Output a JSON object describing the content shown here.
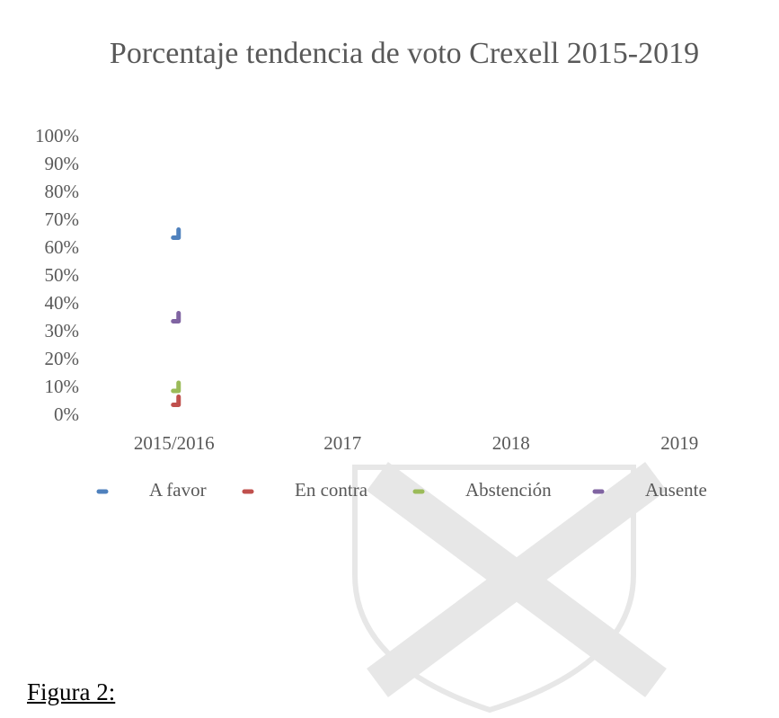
{
  "chart_data": {
    "type": "line",
    "title": "Porcentaje tendencia de voto Crexell 2015-2019",
    "categories": [
      "2015/2016",
      "2017",
      "2018",
      "2019"
    ],
    "series": [
      {
        "name": "A favor",
        "color": "#4f81bd",
        "values": [
          65,
          null,
          null,
          null
        ]
      },
      {
        "name": "En contra",
        "color": "#c0504d",
        "values": [
          5,
          null,
          null,
          null
        ]
      },
      {
        "name": "Abstención",
        "color": "#9bbb59",
        "values": [
          10,
          null,
          null,
          null
        ]
      },
      {
        "name": "Ausente",
        "color": "#8064a2",
        "values": [
          35,
          null,
          null,
          null
        ]
      }
    ],
    "ylim": [
      0,
      100
    ],
    "yticks": [
      {
        "value": 0,
        "label": "0%"
      },
      {
        "value": 10,
        "label": "10%"
      },
      {
        "value": 20,
        "label": "20%"
      },
      {
        "value": 30,
        "label": "30%"
      },
      {
        "value": 40,
        "label": "40%"
      },
      {
        "value": 50,
        "label": "50%"
      },
      {
        "value": 60,
        "label": "60%"
      },
      {
        "value": 70,
        "label": "70%"
      },
      {
        "value": 80,
        "label": "80%"
      },
      {
        "value": 90,
        "label": "90%"
      },
      {
        "value": 100,
        "label": "100%"
      }
    ],
    "legend": "bottom",
    "caption": "Figura 2:"
  }
}
